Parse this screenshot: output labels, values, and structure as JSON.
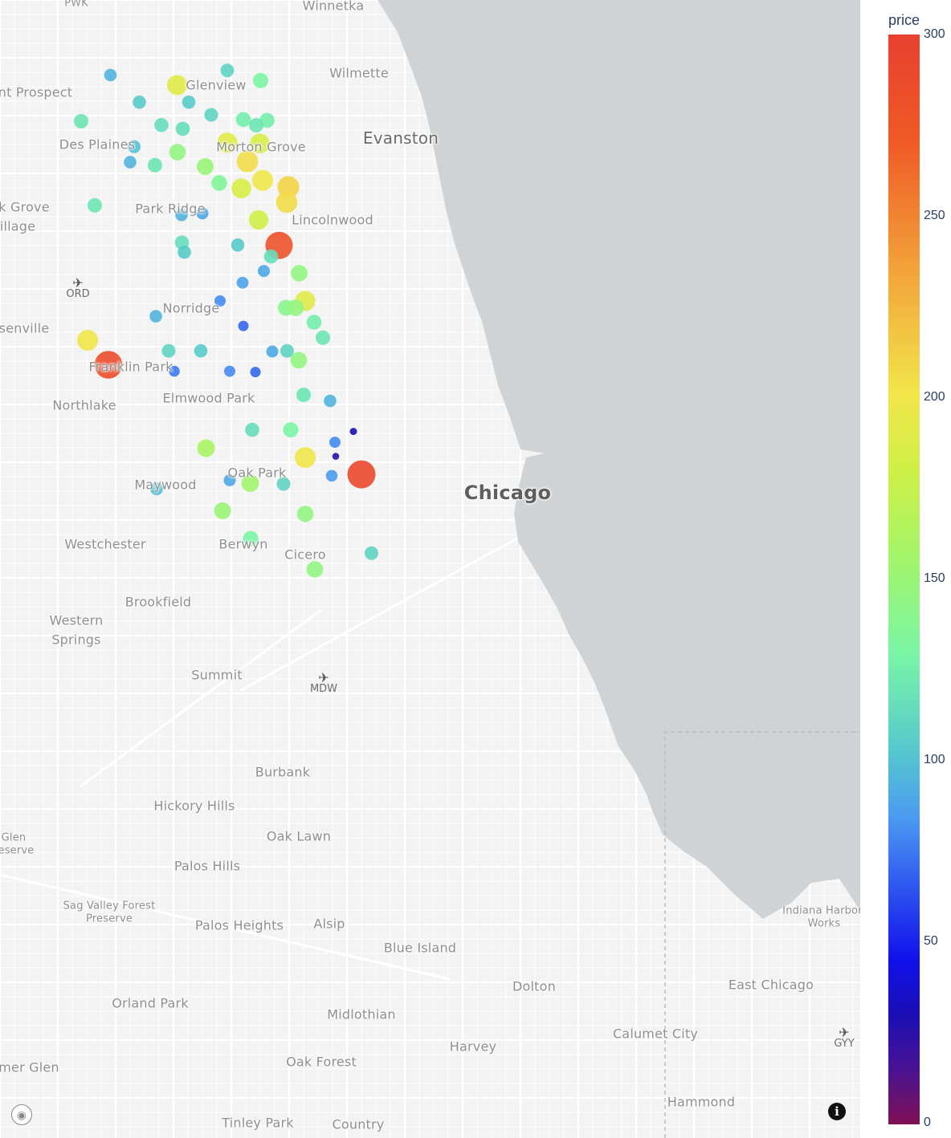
{
  "map": {
    "lake_color": "#cfd3d5",
    "land_color": "#f3f3f3",
    "places": [
      {
        "name": "Winnetka",
        "size": "medium"
      },
      {
        "name": "Wilmette",
        "size": "medium"
      },
      {
        "name": "Glenview",
        "size": "medium"
      },
      {
        "name": "nt Prospect",
        "size": "medium"
      },
      {
        "name": "Evanston",
        "size": "large"
      },
      {
        "name": "Des Plaines",
        "size": "medium"
      },
      {
        "name": "Morton Grove",
        "size": "medium"
      },
      {
        "name": "Park Ridge",
        "size": "medium"
      },
      {
        "name": "k Grove",
        "size": "medium"
      },
      {
        "name": "illage",
        "size": "medium"
      },
      {
        "name": "Lincolnwood",
        "size": "medium"
      },
      {
        "name": "Norridge",
        "size": "medium"
      },
      {
        "name": "senville",
        "size": "medium"
      },
      {
        "name": "Franklin Park",
        "size": "medium"
      },
      {
        "name": "Elmwood Park",
        "size": "medium"
      },
      {
        "name": "Northlake",
        "size": "medium"
      },
      {
        "name": "Oak Park",
        "size": "medium"
      },
      {
        "name": "Maywood",
        "size": "medium"
      },
      {
        "name": "Chicago",
        "size": "major"
      },
      {
        "name": "Westchester",
        "size": "medium"
      },
      {
        "name": "Berwyn",
        "size": "medium"
      },
      {
        "name": "Cicero",
        "size": "medium"
      },
      {
        "name": "Brookfield",
        "size": "medium"
      },
      {
        "name": "Western",
        "size": "medium"
      },
      {
        "name": "Springs",
        "size": "medium"
      },
      {
        "name": "Summit",
        "size": "medium"
      },
      {
        "name": "Burbank",
        "size": "medium"
      },
      {
        "name": "Hickory Hills",
        "size": "medium"
      },
      {
        "name": "Oak Lawn",
        "size": "medium"
      },
      {
        "name": "Glen",
        "size": "small"
      },
      {
        "name": "eserve",
        "size": "small"
      },
      {
        "name": "Palos Hills",
        "size": "medium"
      },
      {
        "name": "Sag Valley Forest",
        "size": "small"
      },
      {
        "name": "Preserve",
        "size": "small"
      },
      {
        "name": "Palos Heights",
        "size": "medium"
      },
      {
        "name": "Alsip",
        "size": "medium"
      },
      {
        "name": "Blue Island",
        "size": "medium"
      },
      {
        "name": "Indiana Harbor",
        "size": "small"
      },
      {
        "name": "Works",
        "size": "small"
      },
      {
        "name": "East Chicago",
        "size": "medium"
      },
      {
        "name": "Dolton",
        "size": "medium"
      },
      {
        "name": "Orland Park",
        "size": "medium"
      },
      {
        "name": "Midlothian",
        "size": "medium"
      },
      {
        "name": "Harvey",
        "size": "medium"
      },
      {
        "name": "Calumet City",
        "size": "medium"
      },
      {
        "name": "mer Glen",
        "size": "medium"
      },
      {
        "name": "Oak Forest",
        "size": "medium"
      },
      {
        "name": "Hammond",
        "size": "medium"
      },
      {
        "name": "Tinley Park",
        "size": "medium"
      },
      {
        "name": "Country",
        "size": "medium"
      },
      {
        "name": "PWK",
        "size": "small"
      }
    ],
    "airports": [
      {
        "code": "ORD",
        "icon": "airplane-icon"
      },
      {
        "code": "MDW",
        "icon": "airplane-icon"
      },
      {
        "code": "GYY",
        "icon": "airplane-icon"
      }
    ]
  },
  "colorbar": {
    "title": "price",
    "ticks": [
      "300",
      "250",
      "200",
      "150",
      "100",
      "50",
      "0"
    ]
  },
  "chart_data": {
    "type": "scatter",
    "color_variable": "price",
    "color_range": [
      0,
      300
    ],
    "colorscale": "rainbow",
    "points_note_x_y_are_image_longitude_latitude_proxies": false,
    "points": [
      {
        "x": -87.8285,
        "y": 42.0218,
        "price": 95
      },
      {
        "x": -87.683,
        "y": 42.0261,
        "price": 110
      },
      {
        "x": -87.6415,
        "y": 42.0166,
        "price": 130
      },
      {
        "x": -87.7455,
        "y": 42.0124,
        "price": 190
      },
      {
        "x": -87.865,
        "y": 41.9784,
        "price": 120
      },
      {
        "x": -87.7925,
        "y": 41.9963,
        "price": 105
      },
      {
        "x": -87.731,
        "y": 41.9963,
        "price": 105
      },
      {
        "x": -87.703,
        "y": 41.9844,
        "price": 110
      },
      {
        "x": -87.663,
        "y": 41.98,
        "price": 125
      },
      {
        "x": -87.6335,
        "y": 41.9792,
        "price": 125
      },
      {
        "x": -87.765,
        "y": 41.9748,
        "price": 115
      },
      {
        "x": -87.7385,
        "y": 41.9713,
        "price": 115
      },
      {
        "x": -87.647,
        "y": 41.9746,
        "price": 120
      },
      {
        "x": -87.799,
        "y": 41.9544,
        "price": 100
      },
      {
        "x": -87.683,
        "y": 41.9582,
        "price": 190
      },
      {
        "x": -87.6425,
        "y": 41.9575,
        "price": 185
      },
      {
        "x": -87.745,
        "y": 41.9493,
        "price": 145
      },
      {
        "x": -87.804,
        "y": 41.9399,
        "price": 95
      },
      {
        "x": -87.773,
        "y": 41.9371,
        "price": 120
      },
      {
        "x": -87.7105,
        "y": 41.9357,
        "price": 150
      },
      {
        "x": -87.658,
        "y": 41.9405,
        "price": 205
      },
      {
        "x": -87.639,
        "y": 41.9228,
        "price": 200
      },
      {
        "x": -87.693,
        "y": 41.9203,
        "price": 135
      },
      {
        "x": -87.6655,
        "y": 41.9153,
        "price": 185
      },
      {
        "x": -87.607,
        "y": 41.9166,
        "price": 210
      },
      {
        "x": -87.609,
        "y": 41.9022,
        "price": 205
      },
      {
        "x": -87.848,
        "y": 41.8993,
        "price": 120
      },
      {
        "x": -87.74,
        "y": 41.8903,
        "price": 95
      },
      {
        "x": -87.714,
        "y": 41.8917,
        "price": 90
      },
      {
        "x": -87.644,
        "y": 41.8856,
        "price": 180
      },
      {
        "x": -87.7395,
        "y": 41.8643,
        "price": 115
      },
      {
        "x": -87.7365,
        "y": 41.8553,
        "price": 105
      },
      {
        "x": -87.67,
        "y": 41.862,
        "price": 105
      },
      {
        "x": -87.6185,
        "y": 41.8616,
        "price": 280
      },
      {
        "x": -87.6285,
        "y": 41.8512,
        "price": 115
      },
      {
        "x": -87.664,
        "y": 41.8265,
        "price": 88
      },
      {
        "x": -87.6375,
        "y": 41.8375,
        "price": 90
      },
      {
        "x": -87.5935,
        "y": 41.8355,
        "price": 145
      },
      {
        "x": -87.692,
        "y": 41.8094,
        "price": 80
      },
      {
        "x": -87.586,
        "y": 41.8094,
        "price": 190
      },
      {
        "x": -87.61,
        "y": 41.803,
        "price": 140
      },
      {
        "x": -87.598,
        "y": 41.803,
        "price": 145
      },
      {
        "x": -87.772,
        "y": 41.795,
        "price": 95
      },
      {
        "x": -87.575,
        "y": 41.7894,
        "price": 125
      },
      {
        "x": -87.663,
        "y": 41.7859,
        "price": 70
      },
      {
        "x": -87.564,
        "y": 41.7749,
        "price": 120
      },
      {
        "x": -87.857,
        "y": 41.7724,
        "price": 200
      },
      {
        "x": -87.756,
        "y": 41.7624,
        "price": 110
      },
      {
        "x": -87.716,
        "y": 41.7624,
        "price": 105
      },
      {
        "x": -87.627,
        "y": 41.7618,
        "price": 90
      },
      {
        "x": -87.6085,
        "y": 41.7624,
        "price": 110
      },
      {
        "x": -87.594,
        "y": 41.7537,
        "price": 145
      },
      {
        "x": -87.831,
        "y": 41.7494,
        "price": 285
      },
      {
        "x": -87.749,
        "y": 41.7433,
        "price": 75
      },
      {
        "x": -87.68,
        "y": 41.7433,
        "price": 80
      },
      {
        "x": -87.648,
        "y": 41.7425,
        "price": 70
      },
      {
        "x": -87.588,
        "y": 41.7211,
        "price": 120
      },
      {
        "x": -87.555,
        "y": 41.7154,
        "price": 95
      },
      {
        "x": -87.652,
        "y": 41.6882,
        "price": 115
      },
      {
        "x": -87.604,
        "y": 41.6882,
        "price": 130
      },
      {
        "x": -87.526,
        "y": 41.6867,
        "price": 30
      },
      {
        "x": -87.549,
        "y": 41.6765,
        "price": 80
      },
      {
        "x": -87.7095,
        "y": 41.6709,
        "price": 160
      },
      {
        "x": -87.586,
        "y": 41.6621,
        "price": 200
      },
      {
        "x": -87.548,
        "y": 41.6633,
        "price": 25
      },
      {
        "x": -87.516,
        "y": 41.6463,
        "price": 290
      },
      {
        "x": -87.553,
        "y": 41.645,
        "price": 85
      },
      {
        "x": -87.68,
        "y": 41.6408,
        "price": 90
      },
      {
        "x": -87.6545,
        "y": 41.638,
        "price": 155
      },
      {
        "x": -87.613,
        "y": 41.6373,
        "price": 110
      },
      {
        "x": -87.771,
        "y": 41.6327,
        "price": 100
      },
      {
        "x": -87.689,
        "y": 41.6121,
        "price": 150
      },
      {
        "x": -87.586,
        "y": 41.6091,
        "price": 145
      },
      {
        "x": -87.654,
        "y": 41.5859,
        "price": 130
      },
      {
        "x": -87.5035,
        "y": 41.5722,
        "price": 110
      },
      {
        "x": -87.574,
        "y": 41.5569,
        "price": 145
      }
    ]
  }
}
